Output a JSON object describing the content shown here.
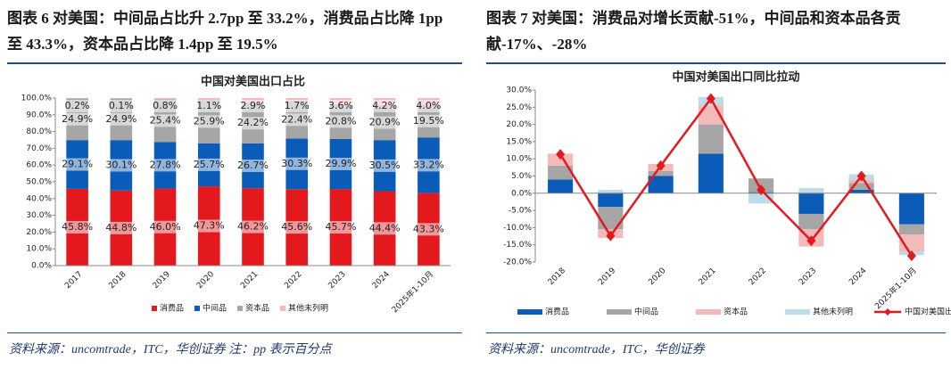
{
  "chart_data": [
    {
      "type": "bar",
      "stacked": true,
      "heading": "图表 6 对美国：中间品占比升 2.7pp 至 33.2%，消费品占比降 1pp 至 43.3%，资本品占比降 1.4pp 至 19.5%",
      "title": "中国对美国出口占比",
      "source": "资料来源：uncomtrade，ITC，华创证券 注：pp 表示百分点",
      "categories": [
        "2017",
        "2018",
        "2019",
        "2020",
        "2021",
        "2022",
        "2023",
        "2024",
        "2025年1-10月"
      ],
      "series": [
        {
          "name": "消费品",
          "color": "#e3191e",
          "values": [
            45.8,
            44.8,
            46.0,
            47.3,
            46.2,
            45.6,
            45.7,
            44.4,
            43.3
          ],
          "value_labels": [
            "45.8%",
            "44.8%",
            "46.0%",
            "47.3%",
            "46.2%",
            "45.6%",
            "45.7%",
            "44.4%",
            "43.3%"
          ]
        },
        {
          "name": "中间品",
          "color": "#0b5cb8",
          "values": [
            29.1,
            30.1,
            27.8,
            25.7,
            26.7,
            30.3,
            29.9,
            30.5,
            33.2
          ],
          "value_labels": [
            "29.1%",
            "30.1%",
            "27.8%",
            "25.7%",
            "26.7%",
            "30.3%",
            "29.9%",
            "30.5%",
            "33.2%"
          ]
        },
        {
          "name": "资本品",
          "color": "#a6a6a6",
          "values": [
            24.9,
            24.9,
            25.4,
            25.9,
            24.2,
            22.4,
            20.8,
            20.9,
            19.5
          ],
          "value_labels": [
            "24.9%",
            "24.9%",
            "25.4%",
            "25.9%",
            "24.2%",
            "22.4%",
            "20.8%",
            "20.9%",
            "19.5%"
          ]
        },
        {
          "name": "其他未列明",
          "color": "#f4b9b9",
          "values": [
            0.2,
            0.1,
            0.8,
            1.1,
            2.9,
            1.7,
            3.6,
            4.2,
            4.0
          ],
          "value_labels": [
            "0.2%",
            "0.1%",
            "0.8%",
            "1.1%",
            "2.9%",
            "1.7%",
            "3.6%",
            "4.2%",
            "4.0%"
          ]
        }
      ],
      "ylim": [
        0,
        100
      ],
      "yticks": [
        {
          "value": 0,
          "label": "0.0%"
        },
        {
          "value": 10,
          "label": "10.0%"
        },
        {
          "value": 20,
          "label": "20.0%"
        },
        {
          "value": 30,
          "label": "30.0%"
        },
        {
          "value": 40,
          "label": "40.0%"
        },
        {
          "value": 50,
          "label": "50.0%"
        },
        {
          "value": 60,
          "label": "60.0%"
        },
        {
          "value": 70,
          "label": "70.0%"
        },
        {
          "value": 80,
          "label": "80.0%"
        },
        {
          "value": 90,
          "label": "90.0%"
        },
        {
          "value": 100,
          "label": "100.0%"
        }
      ]
    },
    {
      "type": "bar",
      "stacked": true,
      "heading": "图表 7 对美国：消费品对增长贡献-51%，中间品和资本品各贡献-17%、-28%",
      "title": "中国对美国出口同比拉动",
      "source": "资料来源：uncomtrade，ITC，华创证券",
      "categories": [
        "2018",
        "2019",
        "2020",
        "2021",
        "2022",
        "2023",
        "2024",
        "2025年1-10月"
      ],
      "series": [
        {
          "name": "消费品",
          "color": "#0b5cb8",
          "values": [
            4,
            -4,
            5,
            11.5,
            0.3,
            -6,
            1,
            -9
          ]
        },
        {
          "name": "中间品",
          "color": "#a6a6a6",
          "values": [
            4,
            -6.5,
            1.5,
            8.5,
            4,
            -4.5,
            2,
            -3
          ]
        },
        {
          "name": "资本品",
          "color": "#f4b9b9",
          "values": [
            3.5,
            -2.5,
            2,
            5.5,
            0,
            -5,
            1,
            -5
          ]
        },
        {
          "name": "其他未列明",
          "color": "#bcdcea",
          "values": [
            0,
            1,
            0,
            2.5,
            -3,
            1.5,
            1.5,
            -1
          ]
        },
        {
          "name": "中国对美国出口同比",
          "color": "#e3191e",
          "type": "line",
          "values": [
            11.3,
            -12.4,
            8,
            27.5,
            1,
            -13.8,
            5,
            -18.2
          ]
        }
      ],
      "ylim": [
        -20,
        30
      ],
      "yticks": [
        {
          "value": -20,
          "label": "-20.0%"
        },
        {
          "value": -15,
          "label": "-15.0%"
        },
        {
          "value": -10,
          "label": "-10.0%"
        },
        {
          "value": -5,
          "label": "-5.0%"
        },
        {
          "value": 0,
          "label": "0.0%"
        },
        {
          "value": 5,
          "label": "5.0%"
        },
        {
          "value": 10,
          "label": "10.0%"
        },
        {
          "value": 15,
          "label": "15.0%"
        },
        {
          "value": 20,
          "label": "20.0%"
        },
        {
          "value": 25,
          "label": "25.0%"
        },
        {
          "value": 30,
          "label": "30.0%"
        }
      ]
    }
  ]
}
